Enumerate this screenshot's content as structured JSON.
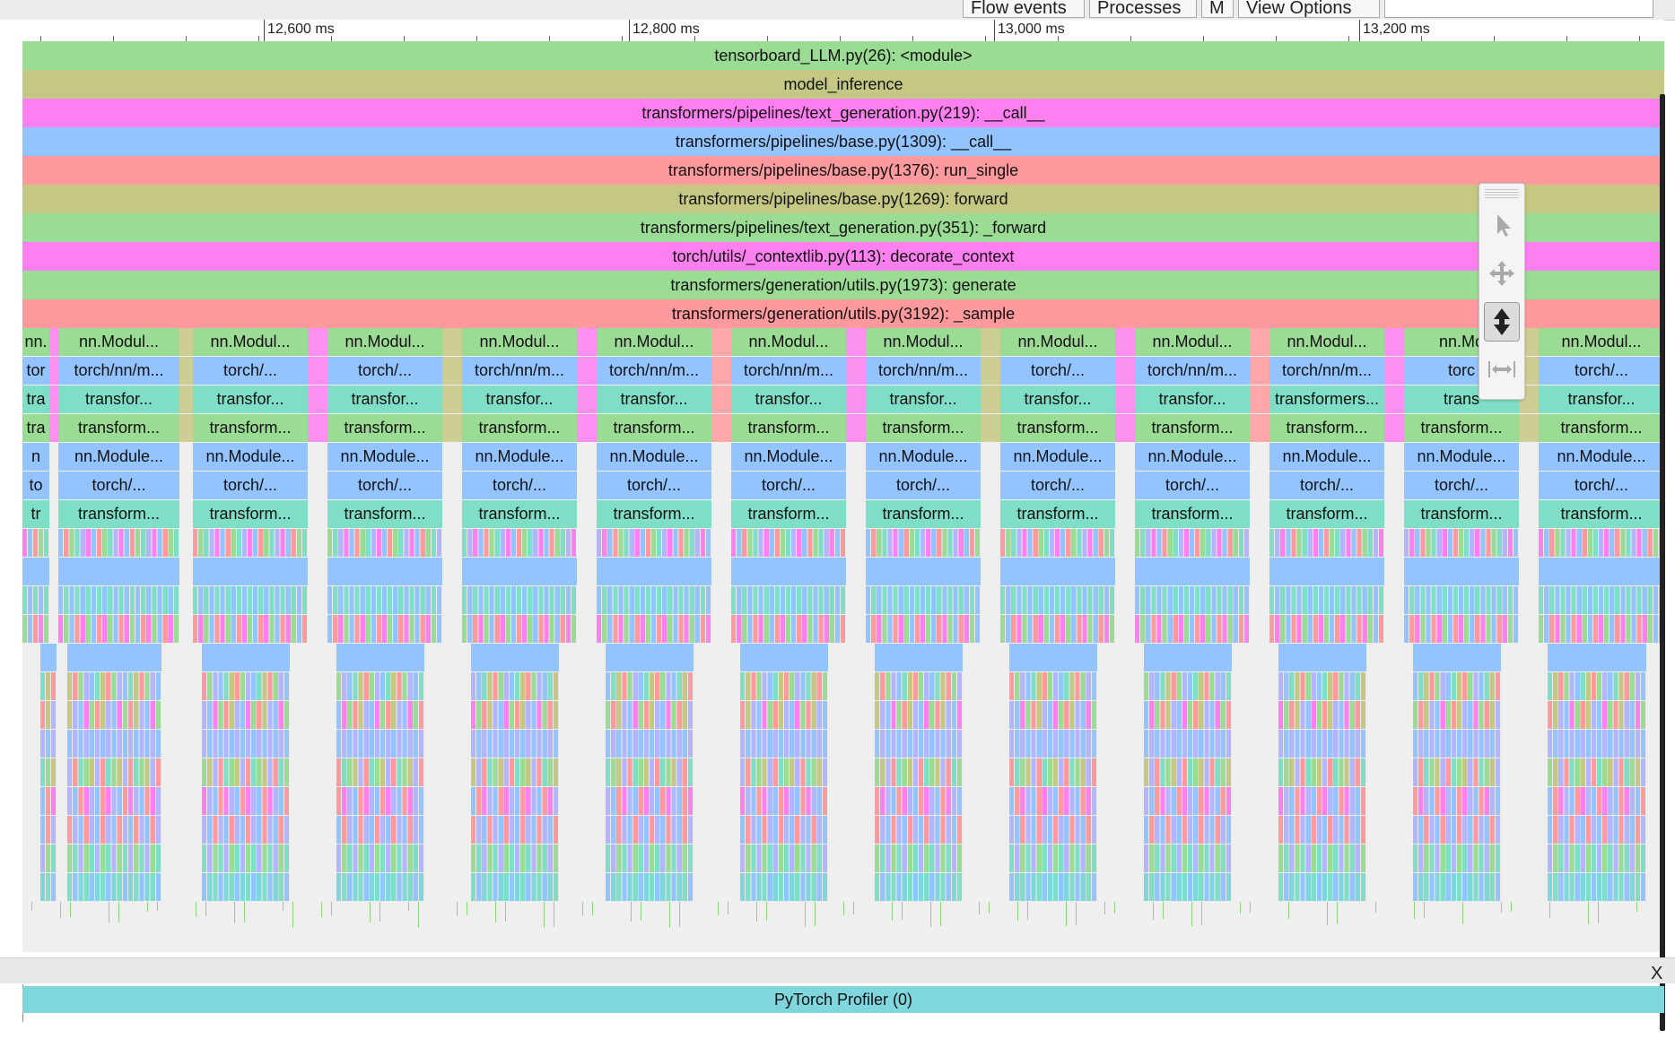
{
  "toolbar_buttons": [
    {
      "label": "Flow events"
    },
    {
      "label": "Processes"
    },
    {
      "label": "M"
    },
    {
      "label": "View Options"
    }
  ],
  "ruler": {
    "labels": [
      "12,600 ms",
      "12,800 ms",
      "13,000 ms",
      "13,200 ms"
    ]
  },
  "colors": {
    "green": "#9bdc94",
    "olive": "#c5c883",
    "magenta": "#fd7ff0",
    "blue": "#93c4ff",
    "salmon": "#fe9a9d",
    "teal": "#7fdfc6",
    "cyan": "#7fd6dc",
    "lavender": "#b3b6ff"
  },
  "call_stack": [
    {
      "label": "tensorboard_LLM.py(26): <module>",
      "color": "green"
    },
    {
      "label": "model_inference",
      "color": "olive"
    },
    {
      "label": "transformers/pipelines/text_generation.py(219): __call__",
      "color": "magenta"
    },
    {
      "label": "transformers/pipelines/base.py(1309): __call__",
      "color": "blue"
    },
    {
      "label": "transformers/pipelines/base.py(1376): run_single",
      "color": "salmon"
    },
    {
      "label": "transformers/pipelines/base.py(1269): forward",
      "color": "olive"
    },
    {
      "label": "transformers/pipelines/text_generation.py(351): _forward",
      "color": "green"
    },
    {
      "label": "torch/utils/_contextlib.py(113): decorate_context",
      "color": "magenta"
    },
    {
      "label": "transformers/generation/utils.py(1973): generate",
      "color": "green"
    },
    {
      "label": "transformers/generation/utils.py(3192): _sample",
      "color": "salmon"
    }
  ],
  "repeated_rows": [
    {
      "color": "green",
      "first": "nn.",
      "labels": [
        "nn.Modul...",
        "nn.Modul...",
        "nn.Modul...",
        "nn.Modul...",
        "nn.Modul...",
        "nn.Modul...",
        "nn.Modul...",
        "nn.Modul...",
        "nn.Modul...",
        "nn.Modul...",
        "nn.Mo",
        "nn.Modul..."
      ]
    },
    {
      "color": "blue",
      "first": "tor",
      "labels": [
        "torch/nn/m...",
        "torch/...",
        "torch/...",
        "torch/nn/m...",
        "torch/nn/m...",
        "torch/nn/m...",
        "torch/nn/m...",
        "torch/...",
        "torch/nn/m...",
        "torch/nn/m...",
        "torc",
        "torch/..."
      ]
    },
    {
      "color": "teal",
      "first": "tra",
      "labels": [
        "transfor...",
        "transfor...",
        "transfor...",
        "transfor...",
        "transfor...",
        "transfor...",
        "transfor...",
        "transfor...",
        "transfor...",
        "transformers...",
        "trans",
        "transfor..."
      ]
    },
    {
      "color": "green",
      "first": "tra",
      "labels": [
        "transform...",
        "transform...",
        "transform...",
        "transform...",
        "transform...",
        "transform...",
        "transform...",
        "transform...",
        "transform...",
        "transform...",
        "transform...",
        "transform..."
      ]
    },
    {
      "color": "blue",
      "first": "n",
      "labels": [
        "nn.Module...",
        "nn.Module...",
        "nn.Module...",
        "nn.Module...",
        "nn.Module...",
        "nn.Module...",
        "nn.Module...",
        "nn.Module...",
        "nn.Module...",
        "nn.Module...",
        "nn.Module...",
        "nn.Module..."
      ]
    },
    {
      "color": "blue",
      "first": "to",
      "labels": [
        "torch/...",
        "torch/...",
        "torch/...",
        "torch/...",
        "torch/...",
        "torch/...",
        "torch/...",
        "torch/...",
        "torch/...",
        "torch/...",
        "torch/...",
        "torch/..."
      ]
    },
    {
      "color": "teal",
      "first": "tr",
      "labels": [
        "transform...",
        "transform...",
        "transform...",
        "transform...",
        "transform...",
        "transform...",
        "transform...",
        "transform...",
        "transform...",
        "transform...",
        "transform...",
        "transform..."
      ]
    }
  ],
  "bottom_panel": {
    "close_label": "X",
    "process_label": "PyTorch Profiler (0)"
  },
  "tools": [
    {
      "icon": "cursor-icon"
    },
    {
      "icon": "pan-icon"
    },
    {
      "icon": "zoom-vertical-icon"
    },
    {
      "icon": "timing-icon"
    }
  ]
}
